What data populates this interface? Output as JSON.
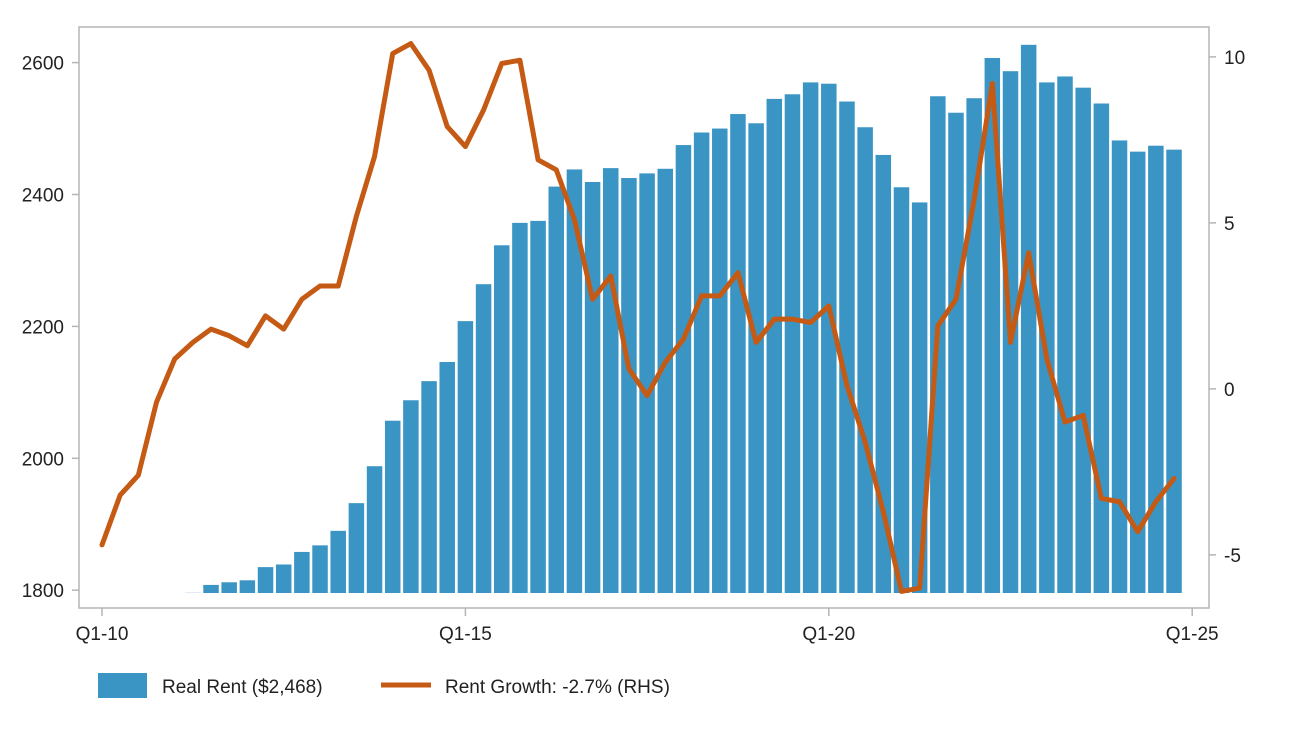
{
  "chart_data": {
    "type": "bar",
    "title": "",
    "xlabel": "",
    "ylabel": "",
    "ylim": [
      1773,
      2654
    ],
    "y2lim": [
      -6.6,
      10.9
    ],
    "yticks": [
      1800,
      2000,
      2200,
      2400,
      2600
    ],
    "y2ticks": [
      -5,
      0,
      5,
      10
    ],
    "x_ticks": [
      {
        "label": "Q1-10",
        "index": 0
      },
      {
        "label": "Q1-15",
        "index": 20
      },
      {
        "label": "Q1-20",
        "index": 40
      },
      {
        "label": "Q1-25",
        "index": 60
      }
    ],
    "x": [
      "Q1-10",
      "Q2-10",
      "Q3-10",
      "Q4-10",
      "Q1-11",
      "Q2-11",
      "Q3-11",
      "Q4-11",
      "Q1-12",
      "Q2-12",
      "Q3-12",
      "Q4-12",
      "Q1-13",
      "Q2-13",
      "Q3-13",
      "Q4-13",
      "Q1-14",
      "Q2-14",
      "Q3-14",
      "Q4-14",
      "Q1-15",
      "Q2-15",
      "Q3-15",
      "Q4-15",
      "Q1-16",
      "Q2-16",
      "Q3-16",
      "Q4-16",
      "Q1-17",
      "Q2-17",
      "Q3-17",
      "Q4-17",
      "Q1-18",
      "Q2-18",
      "Q3-18",
      "Q4-18",
      "Q1-19",
      "Q2-19",
      "Q3-19",
      "Q4-19",
      "Q1-20",
      "Q2-20",
      "Q3-20",
      "Q4-20",
      "Q1-21",
      "Q2-21",
      "Q3-21",
      "Q4-21",
      "Q1-22",
      "Q2-22",
      "Q3-22",
      "Q4-22",
      "Q1-23",
      "Q2-23",
      "Q3-23",
      "Q4-23",
      "Q1-24",
      "Q2-24",
      "Q3-24",
      "Q4-24"
    ],
    "series": [
      {
        "name": "Real Rent ($2,468)",
        "type": "bar",
        "axis": "left",
        "color": "#3a95c4",
        "values": [
          1778,
          1775,
          1777,
          1784,
          1792,
          1796,
          1808,
          1812,
          1815,
          1835,
          1839,
          1858,
          1868,
          1890,
          1932,
          1988,
          2057,
          2088,
          2117,
          2146,
          2208,
          2264,
          2323,
          2357,
          2360,
          2412,
          2438,
          2419,
          2440,
          2425,
          2432,
          2439,
          2475,
          2494,
          2500,
          2522,
          2508,
          2545,
          2552,
          2570,
          2568,
          2541,
          2502,
          2460,
          2411,
          2388,
          2549,
          2524,
          2546,
          2607,
          2587,
          2627,
          2570,
          2579,
          2562,
          2538,
          2482,
          2465,
          2474,
          2468
        ]
      },
      {
        "name": "Rent Growth: -2.7% (RHS)",
        "type": "line",
        "axis": "right",
        "color": "#c55a14",
        "values": [
          -4.7,
          -3.2,
          -2.6,
          -0.4,
          0.9,
          1.4,
          1.8,
          1.6,
          1.3,
          2.2,
          1.8,
          2.7,
          3.1,
          3.1,
          5.2,
          7.0,
          10.1,
          10.4,
          9.6,
          7.9,
          7.3,
          8.4,
          9.8,
          9.9,
          6.9,
          6.6,
          5.1,
          2.7,
          3.4,
          0.6,
          -0.2,
          0.8,
          1.5,
          2.8,
          2.8,
          3.5,
          1.4,
          2.1,
          2.1,
          2.0,
          2.5,
          0.1,
          -1.6,
          -3.7,
          -6.1,
          -6.0,
          1.9,
          2.7,
          5.7,
          9.2,
          1.4,
          4.1,
          0.9,
          -1.0,
          -0.8,
          -3.3,
          -3.4,
          -4.3,
          -3.4,
          -2.7
        ]
      }
    ],
    "legend": {
      "placement": "bottom-left",
      "entries": [
        {
          "label": "Real Rent ($2,468)",
          "marker": "box",
          "color": "#3a95c4"
        },
        {
          "label": "Rent Growth: -2.7% (RHS)",
          "marker": "line",
          "color": "#c55a14"
        }
      ]
    },
    "grid": false
  }
}
